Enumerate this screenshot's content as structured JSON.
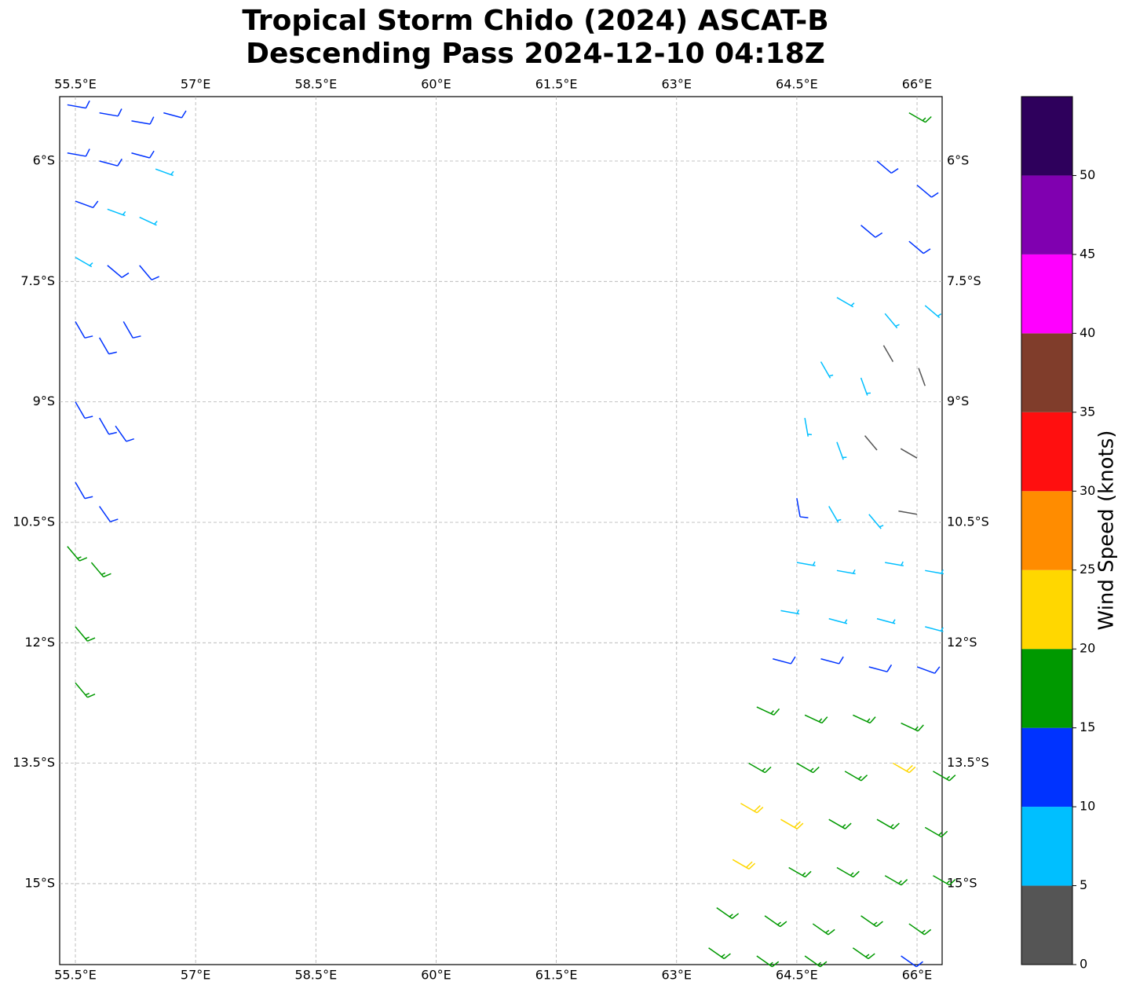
{
  "chart_data": {
    "type": "wind-barbs",
    "title": [
      "Tropical Storm Chido (2024) ASCAT-B",
      "Descending Pass 2024-12-10 04:18Z"
    ],
    "xlim": [
      55.304,
      66.313
    ],
    "ylim": [
      -16.008,
      -5.198
    ],
    "xticks": [
      {
        "value": 55.5,
        "label": "55.5°E"
      },
      {
        "value": 57,
        "label": "57°E"
      },
      {
        "value": 58.5,
        "label": "58.5°E"
      },
      {
        "value": 60,
        "label": "60°E"
      },
      {
        "value": 61.5,
        "label": "61.5°E"
      },
      {
        "value": 63,
        "label": "63°E"
      },
      {
        "value": 64.5,
        "label": "64.5°E"
      },
      {
        "value": 66,
        "label": "66°E"
      }
    ],
    "yticks": [
      {
        "value": -6,
        "label": "6°S"
      },
      {
        "value": -7.5,
        "label": "7.5°S"
      },
      {
        "value": -9,
        "label": "9°S"
      },
      {
        "value": -10.5,
        "label": "10.5°S"
      },
      {
        "value": -12,
        "label": "12°S"
      },
      {
        "value": -13.5,
        "label": "13.5°S"
      },
      {
        "value": -15,
        "label": "15°S"
      }
    ],
    "grid": true,
    "colorbar": {
      "label": "Wind Speed (knots)",
      "lim": [
        0,
        55
      ],
      "ticks": [
        0,
        5,
        10,
        15,
        20,
        25,
        30,
        35,
        40,
        45,
        50
      ],
      "colors": [
        "#555555",
        "#00bfff",
        "#0033ff",
        "#009900",
        "#ffd700",
        "#ff8c00",
        "#ff0f0f",
        "#803d2b",
        "#ff00ff",
        "#8000b0",
        "#2e005c"
      ]
    },
    "barbs": {
      "lon": [
        55.4,
        55.8,
        56.2,
        56.6,
        55.4,
        55.8,
        56.2,
        56.5,
        55.5,
        55.9,
        56.3,
        55.5,
        55.9,
        56.3,
        55.5,
        55.8,
        56.1,
        55.5,
        55.8,
        56.0,
        55.5,
        55.8,
        55.4,
        55.7,
        55.5,
        55.5,
        65.9,
        65.5,
        66.0,
        65.3,
        65.9,
        65.0,
        65.6,
        66.1,
        64.8,
        65.3,
        65.7,
        66.1,
        64.6,
        65.0,
        65.5,
        66.0,
        64.5,
        64.9,
        65.4,
        66.0,
        64.5,
        65.0,
        65.6,
        66.1,
        64.3,
        64.9,
        65.5,
        66.1,
        64.2,
        64.8,
        65.4,
        66.0,
        64.0,
        64.6,
        65.2,
        65.8,
        63.9,
        64.5,
        65.1,
        65.7,
        66.2,
        63.8,
        64.3,
        64.9,
        65.5,
        66.1,
        63.7,
        64.4,
        65.0,
        65.6,
        66.2,
        63.5,
        64.1,
        64.7,
        65.3,
        65.9,
        63.4,
        64.0,
        64.6,
        65.2,
        65.8
      ],
      "lat": [
        -5.3,
        -5.4,
        -5.5,
        -5.4,
        -5.9,
        -6.0,
        -5.9,
        -6.1,
        -6.5,
        -6.6,
        -6.7,
        -7.2,
        -7.3,
        -7.3,
        -8.0,
        -8.2,
        -8.0,
        -9.0,
        -9.2,
        -9.3,
        -10.0,
        -10.3,
        -10.8,
        -11.0,
        -11.8,
        -12.5,
        -5.4,
        -6.0,
        -6.3,
        -6.8,
        -7.0,
        -7.7,
        -7.9,
        -7.8,
        -8.5,
        -8.7,
        -8.5,
        -8.8,
        -9.2,
        -9.5,
        -9.6,
        -9.7,
        -10.2,
        -10.3,
        -10.4,
        -10.4,
        -11.0,
        -11.1,
        -11.0,
        -11.1,
        -11.6,
        -11.7,
        -11.7,
        -11.8,
        -12.2,
        -12.2,
        -12.3,
        -12.3,
        -12.8,
        -12.9,
        -12.9,
        -13.0,
        -13.5,
        -13.5,
        -13.6,
        -13.5,
        -13.6,
        -14.0,
        -14.2,
        -14.2,
        -14.2,
        -14.3,
        -14.7,
        -14.8,
        -14.8,
        -14.9,
        -14.9,
        -15.3,
        -15.4,
        -15.5,
        -15.4,
        -15.5,
        -15.8,
        -15.9,
        -15.9,
        -15.8,
        -15.9
      ],
      "speed": [
        12,
        12,
        13,
        12,
        12,
        12,
        11,
        8,
        11,
        9,
        8,
        8,
        12,
        11,
        12,
        12,
        11,
        12,
        12,
        11,
        13,
        14,
        16,
        17,
        17,
        17,
        17,
        13,
        12,
        13,
        12,
        8,
        8,
        7,
        8,
        7,
        3,
        3,
        7,
        8,
        4,
        3,
        12,
        7,
        7,
        3,
        8,
        8,
        8,
        8,
        8,
        8,
        9,
        9,
        13,
        12,
        13,
        14,
        17,
        18,
        17,
        17,
        17,
        18,
        18,
        22,
        18,
        22,
        22,
        18,
        18,
        18,
        22,
        18,
        18,
        18,
        18,
        17,
        18,
        18,
        18,
        17,
        17,
        17,
        17,
        17,
        12
      ],
      "direction": [
        100,
        100,
        100,
        105,
        100,
        105,
        105,
        110,
        110,
        110,
        115,
        120,
        130,
        140,
        150,
        150,
        150,
        150,
        150,
        145,
        150,
        145,
        140,
        140,
        140,
        140,
        120,
        130,
        130,
        130,
        130,
        120,
        140,
        130,
        150,
        160,
        330,
        340,
        170,
        160,
        320,
        300,
        170,
        150,
        140,
        280,
        100,
        100,
        100,
        100,
        100,
        105,
        105,
        105,
        105,
        105,
        105,
        110,
        115,
        115,
        115,
        115,
        120,
        120,
        120,
        120,
        120,
        120,
        120,
        120,
        120,
        120,
        120,
        120,
        120,
        120,
        120,
        125,
        125,
        125,
        125,
        125,
        125,
        125,
        125,
        125,
        125
      ]
    }
  }
}
